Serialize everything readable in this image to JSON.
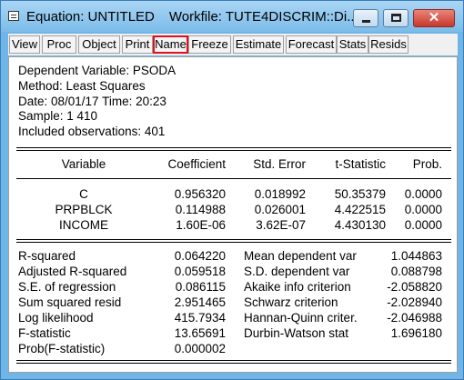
{
  "window": {
    "title": "Equation: UNTITLED",
    "workfile": "Workfile: TUTE4DISCRIM::Di...",
    "close_glyph": "✕"
  },
  "toolbar": [
    "View",
    "Proc",
    "Object",
    "Print",
    "Name",
    "Freeze",
    "Estimate",
    "Forecast",
    "Stats",
    "Resids"
  ],
  "toolbar_highlighted": "Name",
  "header": {
    "dependent": "Dependent Variable: PSODA",
    "method": "Method: Least Squares",
    "date": "Date: 08/01/17   Time: 20:23",
    "sample": "Sample: 1 410",
    "included": "Included observations: 401"
  },
  "coef_table": {
    "columns": [
      "Variable",
      "Coefficient",
      "Std. Error",
      "t-Statistic",
      "Prob."
    ],
    "rows": [
      [
        "C",
        "0.956320",
        "0.018992",
        "50.35379",
        "0.0000"
      ],
      [
        "PRPBLCK",
        "0.114988",
        "0.026001",
        "4.422515",
        "0.0000"
      ],
      [
        "INCOME",
        "1.60E-06",
        "3.62E-07",
        "4.430130",
        "0.0000"
      ]
    ]
  },
  "stats": {
    "left": [
      [
        "R-squared",
        "0.064220"
      ],
      [
        "Adjusted R-squared",
        "0.059518"
      ],
      [
        "S.E. of regression",
        "0.086115"
      ],
      [
        "Sum squared resid",
        "2.951465"
      ],
      [
        "Log likelihood",
        "415.7934"
      ],
      [
        "F-statistic",
        "13.65691"
      ],
      [
        "Prob(F-statistic)",
        "0.000002"
      ]
    ],
    "right": [
      [
        "Mean dependent var",
        "1.044863"
      ],
      [
        "S.D. dependent var",
        "0.088798"
      ],
      [
        "Akaike info criterion",
        "-2.058820"
      ],
      [
        "Schwarz criterion",
        "-2.028940"
      ],
      [
        "Hannan-Quinn criter.",
        "-2.046988"
      ],
      [
        "Durbin-Watson stat",
        "1.696180"
      ]
    ]
  },
  "colors": {
    "highlight_border": "#e0101c",
    "window_frame": "#6fb5e8"
  }
}
